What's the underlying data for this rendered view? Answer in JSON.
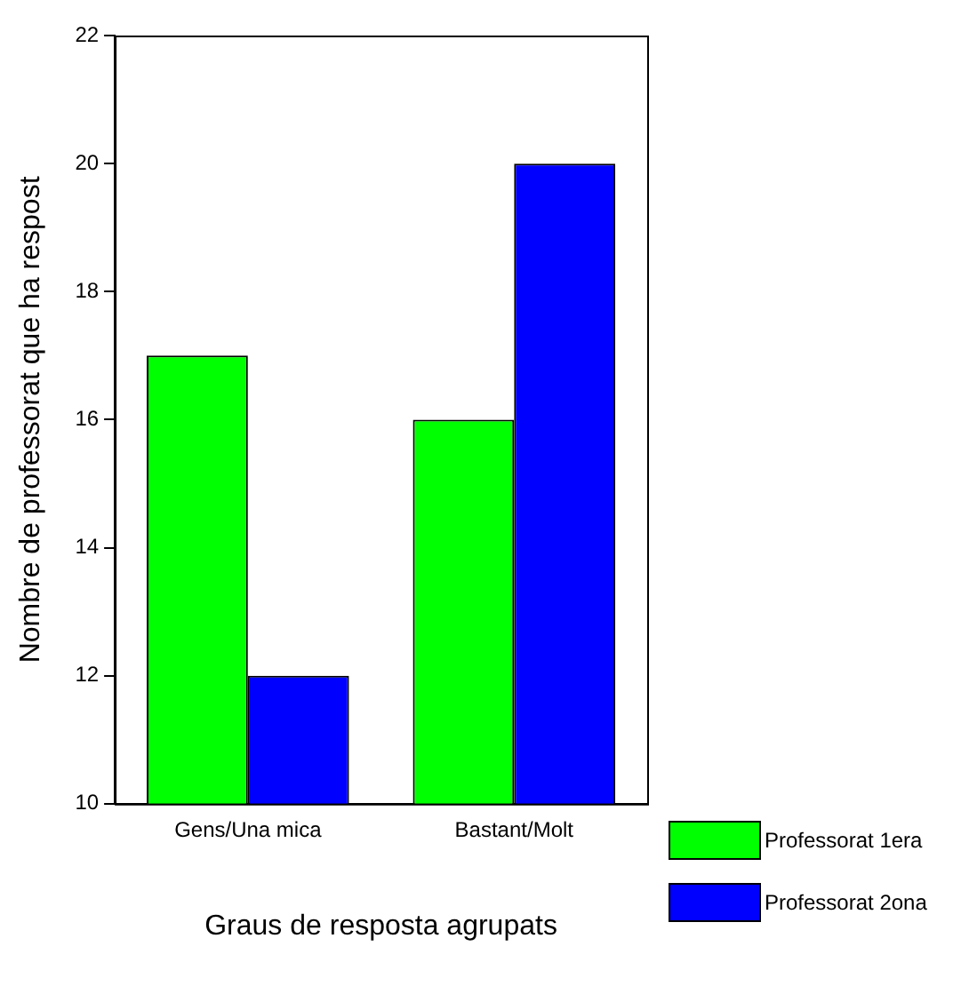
{
  "chart_data": {
    "type": "bar",
    "xlabel": "Graus de resposta agrupats",
    "ylabel": "Nombre de professorat que ha respost",
    "categories": [
      "Gens/Una mica",
      "Bastant/Molt"
    ],
    "series": [
      {
        "name": "Professorat 1era",
        "color": "#00ff00",
        "values": [
          17,
          16
        ]
      },
      {
        "name": "Professorat 2ona",
        "color": "#0000ff",
        "values": [
          12,
          20
        ]
      }
    ],
    "ylim": [
      10,
      22
    ],
    "yticks": [
      10,
      12,
      14,
      16,
      18,
      20,
      22
    ],
    "grid": false,
    "legend": "bottom right"
  }
}
